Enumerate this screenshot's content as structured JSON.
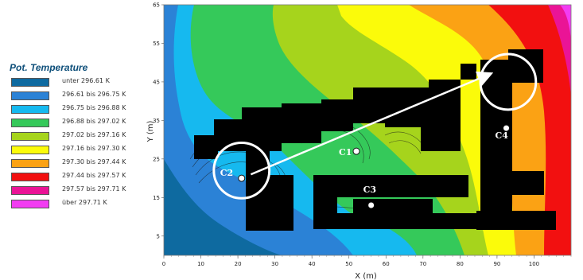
{
  "legend": {
    "title": "Pot. Temperature",
    "items": [
      {
        "label": "unter 296.61 K",
        "color": "#0e6aa0"
      },
      {
        "label": "296.61 bis 296.75 K",
        "color": "#2b82d6"
      },
      {
        "label": "296.75 bis 296.88 K",
        "color": "#16b9ef"
      },
      {
        "label": "296.88 bis 297.02 K",
        "color": "#35c95a"
      },
      {
        "label": "297.02 bis 297.16 K",
        "color": "#a6d41c"
      },
      {
        "label": "297.16 bis 297.30 K",
        "color": "#fbfb0a"
      },
      {
        "label": "297.30 bis 297.44 K",
        "color": "#fba214"
      },
      {
        "label": "297.44 bis 297.57 K",
        "color": "#f21010"
      },
      {
        "label": "297.57 bis 297.71 K",
        "color": "#ea1496"
      },
      {
        "label": "über 297.71 K",
        "color": "#f23cf2"
      }
    ]
  },
  "map": {
    "x_axis_label": "X (m)",
    "y_axis_label": "Y (m)",
    "x_ticks": [
      "0",
      "10",
      "20",
      "30",
      "40",
      "50",
      "60",
      "70",
      "80",
      "90",
      "100"
    ],
    "y_ticks": [
      "5",
      "15",
      "25",
      "35",
      "45",
      "55",
      "65"
    ],
    "x_range": [
      0,
      110
    ],
    "y_range": [
      0,
      65
    ],
    "building_color": "#000000",
    "marker_text_color": "#ffffff",
    "markers": [
      {
        "label": "C1",
        "x": 52,
        "y": 27
      },
      {
        "label": "C2",
        "x": 21,
        "y": 20
      },
      {
        "label": "C3",
        "x": 56,
        "y": 13
      },
      {
        "label": "C4",
        "x": 92.5,
        "y": 33
      }
    ],
    "arrow": {
      "from": [
        23.5,
        21
      ],
      "to": [
        88,
        47
      ]
    },
    "highlight_circles": [
      {
        "cx": 21,
        "cy": 22,
        "r": 7.5
      },
      {
        "cx": 93,
        "cy": 45,
        "r": 7.5
      }
    ]
  }
}
